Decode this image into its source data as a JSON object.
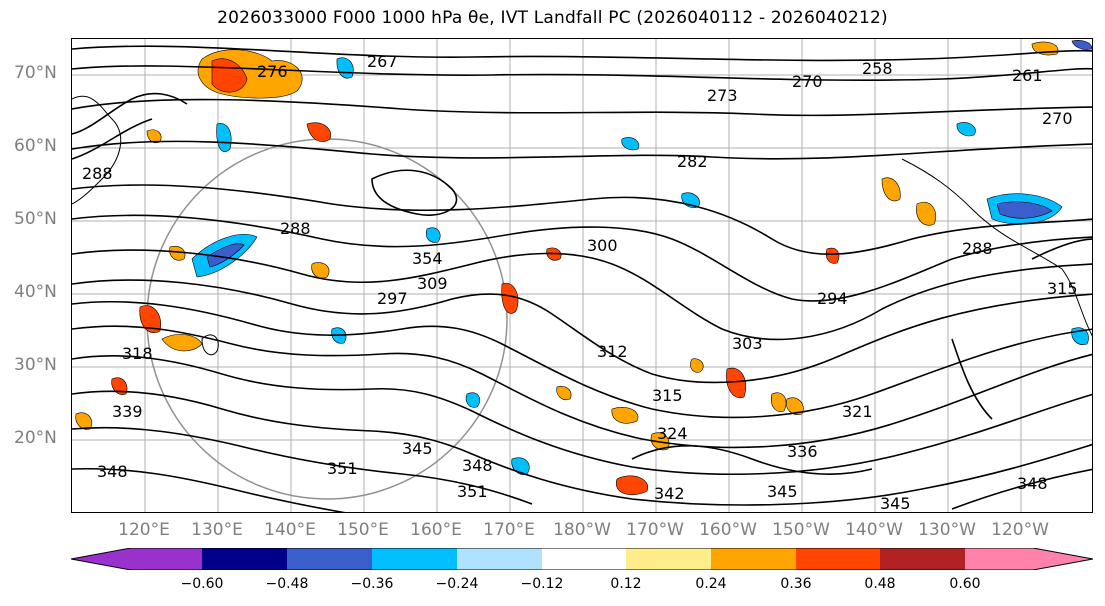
{
  "title": "2026033000 F000 1000 hPa θe, IVT Landfall PC (2026040112 - 2026040212)",
  "latitude_labels": [
    "70°N",
    "60°N",
    "50°N",
    "40°N",
    "30°N",
    "20°N"
  ],
  "longitude_labels": [
    "120°E",
    "130°E",
    "140°E",
    "150°E",
    "160°E",
    "170°E",
    "180°W",
    "170°W",
    "160°W",
    "150°W",
    "140°W",
    "130°W",
    "120°W"
  ],
  "contour_labels": [
    "267",
    "276",
    "258",
    "261",
    "273",
    "270",
    "270",
    "282",
    "288",
    "288",
    "300",
    "288",
    "297",
    "294",
    "315",
    "309",
    "318",
    "312",
    "303",
    "339",
    "315",
    "324",
    "321",
    "336",
    "348",
    "345",
    "348",
    "351",
    "351",
    "342",
    "345",
    "345",
    "348",
    "354"
  ],
  "colorbar": {
    "tick_labels": [
      "−0.60",
      "−0.48",
      "−0.36",
      "−0.24",
      "−0.12",
      "0.12",
      "0.24",
      "0.36",
      "0.48",
      "0.60"
    ],
    "colors": [
      "#9932cc",
      "#00008b",
      "#3a5fcd",
      "#00bfff",
      "#b0e2ff",
      "#ffffff",
      "#ffec8b",
      "#ffa500",
      "#ff4500",
      "#b22222",
      "#ff82ab"
    ]
  },
  "legend_colors": {
    "contour": "#000000",
    "positive_low": "#ffa500",
    "positive_high": "#ff4500",
    "negative_low": "#00bfff",
    "negative_high": "#3a5fcd",
    "gridline": "#b0b0b0",
    "coast": "#000000"
  }
}
